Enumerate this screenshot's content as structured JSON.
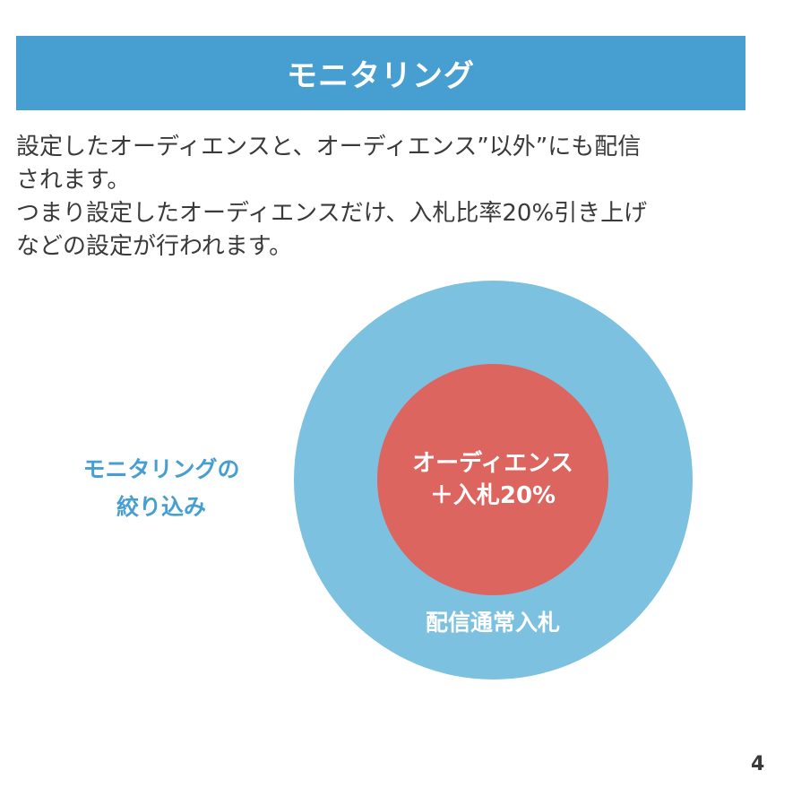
{
  "slide": {
    "title": "モニタリング",
    "description_lines": [
      "設定したオーディエンスと、オーディエンス”以外”にも配信",
      "されます。",
      "つまり設定したオーディエンスだけ、入札比率20%引き上げ",
      "などの設定が行われます。"
    ],
    "page_number": "4"
  },
  "diagram": {
    "outer_circle": {
      "label": "配信通常入札",
      "color": "#7cc1df"
    },
    "inner_circle": {
      "label_lines": [
        "オーディエンス",
        "＋入札20%"
      ],
      "color": "#dd6560"
    },
    "side_label_lines": [
      "モニタリングの",
      "絞り込み"
    ],
    "accent_color": "#479fd1"
  }
}
